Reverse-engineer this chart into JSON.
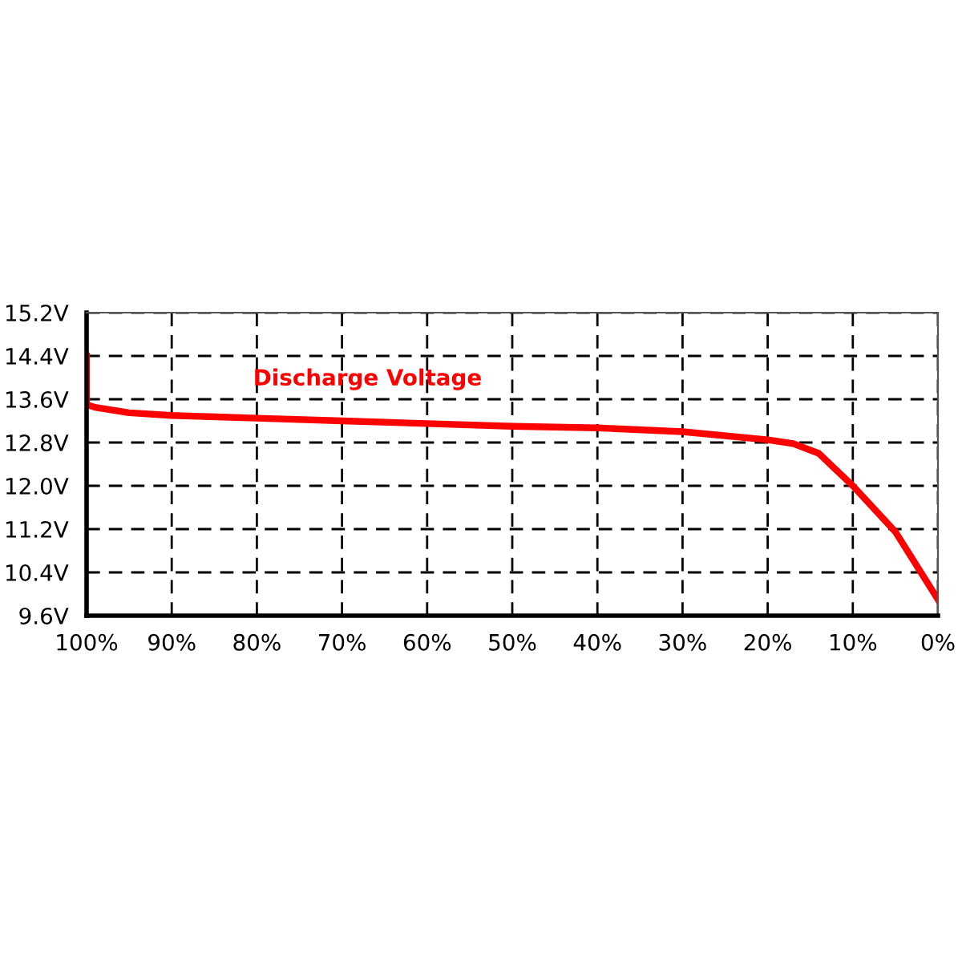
{
  "chart_data": {
    "type": "line",
    "series": [
      {
        "name": "Discharge Voltage",
        "color": "#ff0000",
        "x": [
          100,
          100,
          99,
          95,
          90,
          80,
          70,
          60,
          50,
          40,
          30,
          20,
          17,
          14,
          10,
          5,
          0
        ],
        "values": [
          14.4,
          13.5,
          13.45,
          13.35,
          13.3,
          13.25,
          13.2,
          13.15,
          13.1,
          13.07,
          13.0,
          12.85,
          12.78,
          12.6,
          12.0,
          11.15,
          9.9
        ]
      }
    ],
    "xlim": [
      100,
      0
    ],
    "xticks": [
      {
        "value": 100,
        "label": "100%"
      },
      {
        "value": 90,
        "label": "90%"
      },
      {
        "value": 80,
        "label": "80%"
      },
      {
        "value": 70,
        "label": "70%"
      },
      {
        "value": 60,
        "label": "60%"
      },
      {
        "value": 50,
        "label": "50%"
      },
      {
        "value": 40,
        "label": "40%"
      },
      {
        "value": 30,
        "label": "30%"
      },
      {
        "value": 20,
        "label": "20%"
      },
      {
        "value": 10,
        "label": "10%"
      },
      {
        "value": 0,
        "label": "0%"
      }
    ],
    "ylim": [
      9.6,
      15.2
    ],
    "yticks": [
      {
        "value": 9.6,
        "label": "9.6V"
      },
      {
        "value": 10.4,
        "label": "10.4V"
      },
      {
        "value": 11.2,
        "label": "11.2V"
      },
      {
        "value": 12.0,
        "label": "12.0V"
      },
      {
        "value": 12.8,
        "label": "12.8V"
      },
      {
        "value": 13.6,
        "label": "13.6V"
      },
      {
        "value": 14.4,
        "label": "14.4V"
      },
      {
        "value": 15.2,
        "label": "15.2V"
      }
    ],
    "grid": true,
    "line_style": "solid",
    "marker": "none",
    "legend": false
  }
}
